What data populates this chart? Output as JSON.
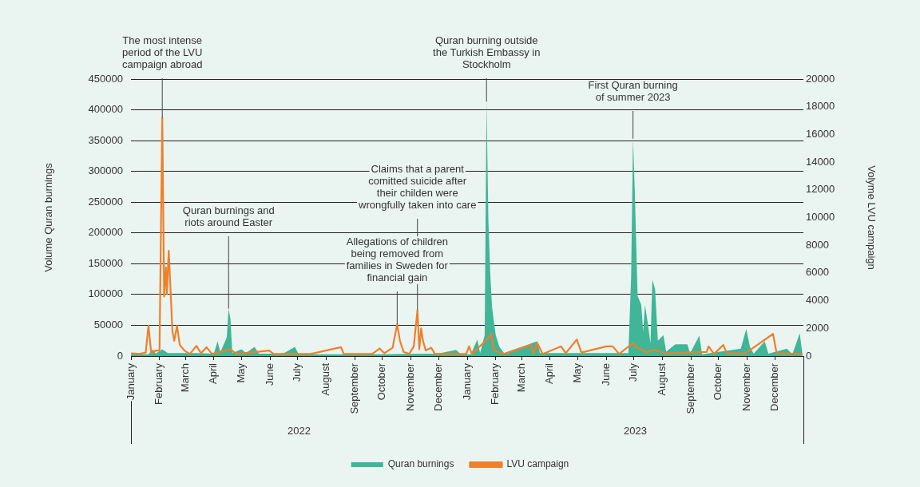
{
  "chart_data": {
    "type": "line",
    "ylabel": "Volume Quran burnings",
    "y2label": "Volyme LVU campaign",
    "xlim": [
      "2022-01-01",
      "2024-01-01"
    ],
    "xticks": [
      {
        "value": "2022-01-01",
        "label": "January"
      },
      {
        "value": "2022-02-01",
        "label": "February"
      },
      {
        "value": "2022-03-01",
        "label": "March"
      },
      {
        "value": "2022-04-01",
        "label": "April"
      },
      {
        "value": "2022-05-01",
        "label": "May"
      },
      {
        "value": "2022-06-01",
        "label": "June"
      },
      {
        "value": "2022-07-01",
        "label": "July"
      },
      {
        "value": "2022-08-01",
        "label": "August"
      },
      {
        "value": "2022-09-01",
        "label": "September"
      },
      {
        "value": "2022-10-01",
        "label": "October"
      },
      {
        "value": "2022-11-01",
        "label": "November"
      },
      {
        "value": "2022-12-01",
        "label": "December"
      },
      {
        "value": "2023-01-01",
        "label": "January"
      },
      {
        "value": "2023-02-01",
        "label": "February"
      },
      {
        "value": "2023-03-01",
        "label": "March"
      },
      {
        "value": "2023-04-01",
        "label": "April"
      },
      {
        "value": "2023-05-01",
        "label": "May"
      },
      {
        "value": "2023-06-01",
        "label": "June"
      },
      {
        "value": "2023-07-01",
        "label": "July"
      },
      {
        "value": "2023-08-01",
        "label": "August"
      },
      {
        "value": "2023-09-01",
        "label": "September"
      },
      {
        "value": "2023-10-01",
        "label": "October"
      },
      {
        "value": "2023-11-01",
        "label": "November"
      },
      {
        "value": "2023-12-01",
        "label": "December"
      },
      {
        "value": "2024-01-01",
        "label": null
      }
    ],
    "ylim": [
      0,
      450000
    ],
    "yticks": [
      0,
      50000,
      100000,
      150000,
      200000,
      250000,
      300000,
      350000,
      400000,
      450000
    ],
    "y2lim": [
      0,
      20000
    ],
    "y2ticks": [
      0,
      2000,
      4000,
      6000,
      8000,
      10000,
      12000,
      14000,
      16000,
      18000,
      20000
    ],
    "grid": "y",
    "legend": "bottom",
    "marker": "none",
    "line_style": "solid",
    "series": [
      {
        "name": "Quran burnings",
        "type": "area",
        "color": "#40b696",
        "x": [
          "2022-01-01",
          "2022-01-20",
          "2022-01-25",
          "2022-01-28",
          "2022-02-04",
          "2022-02-10",
          "2022-03-10",
          "2022-04-01",
          "2022-04-05",
          "2022-04-08",
          "2022-04-15",
          "2022-04-17",
          "2022-04-19",
          "2022-04-21",
          "2022-05-01",
          "2022-05-06",
          "2022-05-15",
          "2022-05-20",
          "2022-06-15",
          "2022-06-28",
          "2022-07-02",
          "2022-08-01",
          "2022-09-01",
          "2022-10-01",
          "2022-11-30",
          "2022-12-20",
          "2022-12-25",
          "2023-01-05",
          "2023-01-12",
          "2023-01-15",
          "2023-01-20",
          "2023-01-22",
          "2023-01-24",
          "2023-01-26",
          "2023-01-28",
          "2023-01-30",
          "2023-02-01",
          "2023-02-05",
          "2023-02-10",
          "2023-03-18",
          "2023-03-21",
          "2023-06-25",
          "2023-06-28",
          "2023-06-30",
          "2023-07-02",
          "2023-07-05",
          "2023-07-09",
          "2023-07-11",
          "2023-07-13",
          "2023-07-16",
          "2023-07-19",
          "2023-07-21",
          "2023-07-24",
          "2023-07-27",
          "2023-08-02",
          "2023-08-05",
          "2023-08-15",
          "2023-08-28",
          "2023-08-31",
          "2023-09-10",
          "2023-09-13",
          "2023-10-25",
          "2023-10-31",
          "2023-11-04",
          "2023-11-08",
          "2023-11-20",
          "2023-11-24",
          "2023-12-14",
          "2023-12-20",
          "2023-12-28",
          "2023-12-31"
        ],
        "values": [
          3000,
          3000,
          11000,
          4000,
          11000,
          5000,
          5000,
          4000,
          24000,
          6000,
          30000,
          77000,
          60000,
          5000,
          11000,
          5000,
          15000,
          4000,
          4000,
          15000,
          3000,
          3000,
          3000,
          3000,
          4000,
          10000,
          3000,
          3000,
          27000,
          5000,
          34000,
          413000,
          221000,
          136000,
          79000,
          56000,
          34000,
          15000,
          5000,
          24000,
          5000,
          5000,
          130000,
          353000,
          266000,
          98000,
          83000,
          40000,
          83000,
          54000,
          20000,
          124000,
          109000,
          25000,
          34000,
          7000,
          19000,
          19000,
          5000,
          33000,
          3000,
          12000,
          44000,
          15000,
          4000,
          24000,
          4000,
          12000,
          3000,
          37000,
          3000
        ]
      },
      {
        "name": "LVU campaign",
        "axis": "y2",
        "color": "#f07f2a",
        "x": [
          "2022-01-01",
          "2022-01-10",
          "2022-01-17",
          "2022-01-20",
          "2022-01-23",
          "2022-01-28",
          "2022-02-01",
          "2022-02-04",
          "2022-02-06",
          "2022-02-08",
          "2022-02-09",
          "2022-02-11",
          "2022-02-13",
          "2022-02-15",
          "2022-02-17",
          "2022-02-20",
          "2022-02-23",
          "2022-02-28",
          "2022-03-06",
          "2022-03-13",
          "2022-03-18",
          "2022-03-24",
          "2022-03-30",
          "2022-04-19",
          "2022-04-25",
          "2022-05-10",
          "2022-05-31",
          "2022-06-05",
          "2022-07-15",
          "2022-08-17",
          "2022-08-20",
          "2022-09-20",
          "2022-09-28",
          "2022-10-03",
          "2022-10-12",
          "2022-10-17",
          "2022-10-20",
          "2022-10-24",
          "2022-10-30",
          "2022-11-04",
          "2022-11-08",
          "2022-11-10",
          "2022-11-12",
          "2022-11-14",
          "2022-11-17",
          "2022-11-23",
          "2022-11-27",
          "2022-12-31",
          "2023-01-03",
          "2023-01-06",
          "2023-01-24",
          "2023-01-27",
          "2023-01-30",
          "2023-02-10",
          "2023-03-11",
          "2023-03-14",
          "2023-03-18",
          "2023-03-24",
          "2023-04-13",
          "2023-04-18",
          "2023-04-30",
          "2023-05-05",
          "2023-06-01",
          "2023-06-08",
          "2023-06-15",
          "2023-06-30",
          "2023-07-03",
          "2023-07-06",
          "2023-07-14",
          "2023-07-22",
          "2023-08-05",
          "2023-09-18",
          "2023-09-20",
          "2023-09-26",
          "2023-10-06",
          "2023-10-10",
          "2023-10-30",
          "2023-11-29",
          "2023-12-03",
          "2023-12-31"
        ],
        "values": [
          200,
          150,
          250,
          2200,
          200,
          400,
          400,
          17200,
          4300,
          6400,
          4500,
          7600,
          4700,
          1800,
          1100,
          2200,
          800,
          400,
          150,
          740,
          200,
          640,
          150,
          500,
          150,
          250,
          400,
          150,
          150,
          640,
          150,
          150,
          550,
          200,
          600,
          2300,
          1100,
          300,
          150,
          700,
          3300,
          500,
          2000,
          1100,
          400,
          600,
          150,
          150,
          700,
          150,
          1300,
          1600,
          400,
          150,
          800,
          200,
          950,
          150,
          700,
          200,
          1200,
          250,
          700,
          700,
          150,
          950,
          650,
          600,
          250,
          450,
          200,
          300,
          700,
          150,
          800,
          200,
          200,
          1600,
          200,
          150
        ]
      }
    ],
    "annotations": [
      {
        "text": "The most intense period of the LVU campaign abroad",
        "x": "2022-02-04",
        "y": 387000
      },
      {
        "text": "Quran burnings and riots around Easter",
        "x": "2022-04-17",
        "y": 77000
      },
      {
        "text": "Allegations of children being removed from families in Sweden for financial gain",
        "x": "2022-10-17",
        "y": 51750
      },
      {
        "text": "Claims that a parent comitted suicide after their childen were wrongfully taken into care",
        "x": "2022-11-08",
        "y": 74250
      },
      {
        "text": "Quran burning outside the Turkish Embassy in Stockholm",
        "x": "2023-01-22",
        "y": 413000
      },
      {
        "text": "First Quran burning of summer 2023",
        "x": "2023-06-30",
        "y": 353000
      },
      "2022",
      "2023"
    ]
  }
}
